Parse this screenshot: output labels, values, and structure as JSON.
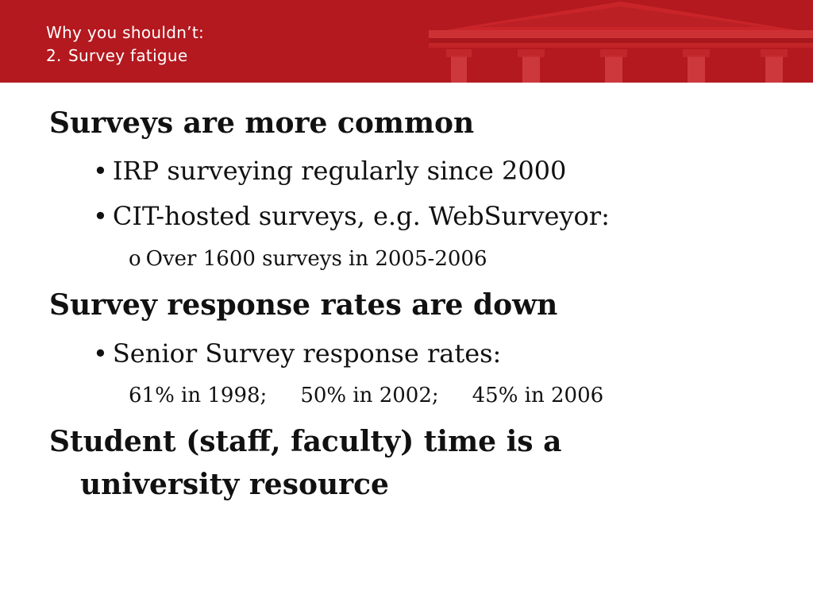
{
  "header": {
    "line1": "Why you shouldn’t:",
    "line2_number": "2.",
    "line2_text": "Survey fatigue",
    "background_color": "#b3191f"
  },
  "content": {
    "heading1": "Surveys are more common",
    "item1": "IRP surveying regularly since 2000",
    "item2": "CIT-hosted surveys, e.g. WebSurveyor:",
    "subitem1": "Over 1600 surveys in 2005-2006",
    "heading2": "Survey response rates are down",
    "item3": "Senior Survey response rates:",
    "rates": [
      "61% in 1998;",
      "50% in 2002;",
      "45% in 2006"
    ],
    "heading3_line1": "Student (staff, faculty) time is a",
    "heading3_line2": "university resource"
  },
  "markers": {
    "bullet": "•",
    "sub_bullet": "o"
  }
}
